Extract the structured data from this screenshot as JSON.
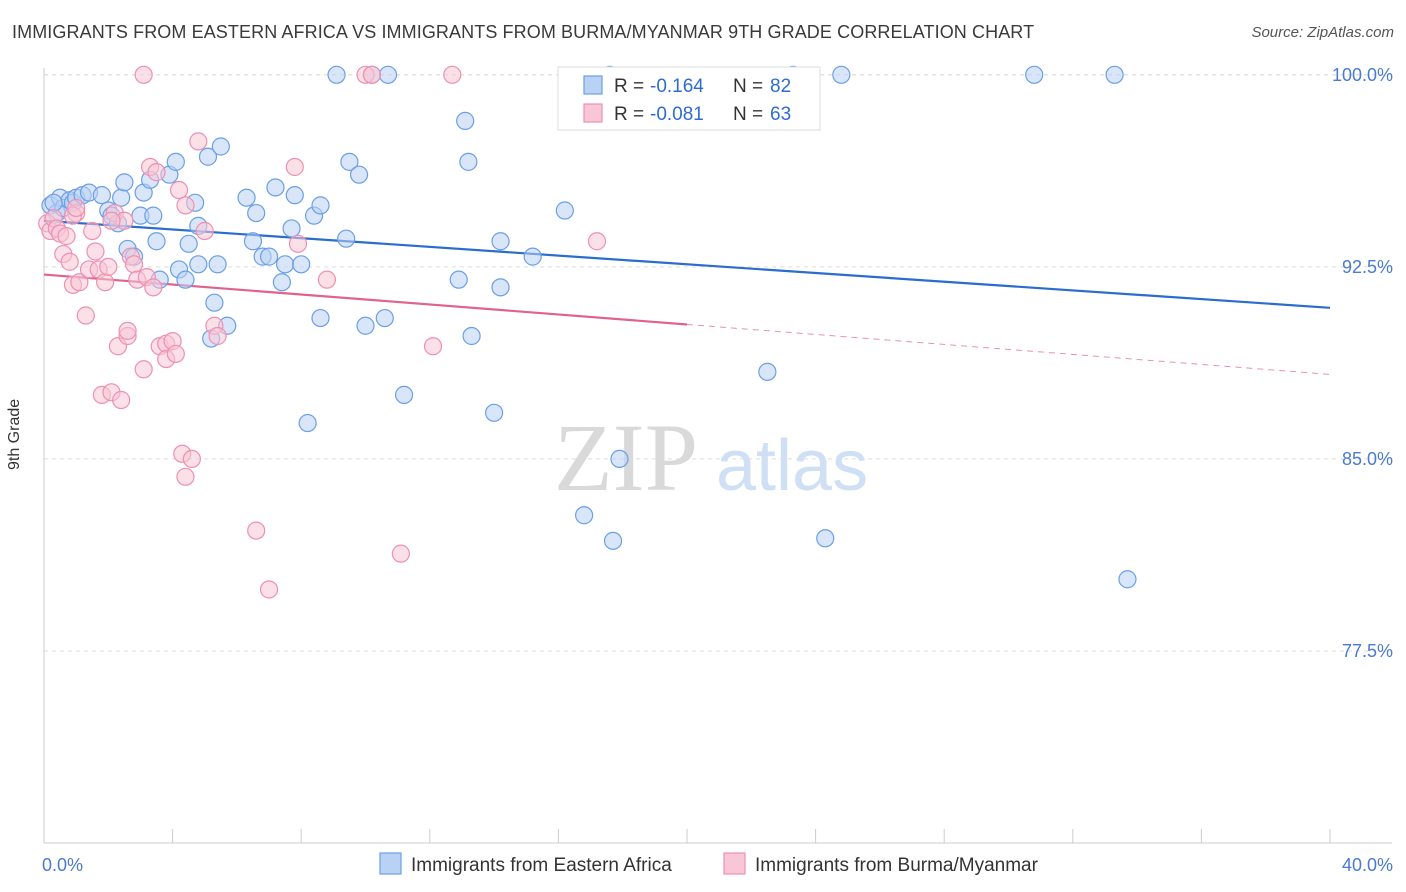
{
  "title": "IMMIGRANTS FROM EASTERN AFRICA VS IMMIGRANTS FROM BURMA/MYANMAR 9TH GRADE CORRELATION CHART",
  "source": "Source: ZipAtlas.com",
  "watermark": {
    "zip": "ZIP",
    "atlas": "atlas"
  },
  "colors": {
    "blue": "#6a9fe6",
    "blue_fill": "#b9d2f4",
    "blue_line": "#2a6dcc",
    "pink": "#ef8fb2",
    "pink_fill": "#f8c6d6",
    "pink_line": "#e0628f",
    "tick": "#4a7bd0"
  },
  "legend": {
    "r_label": "R =",
    "n_label": "N =",
    "items": [
      {
        "r": "-0.164",
        "n": "82",
        "color": "blue"
      },
      {
        "r": "-0.081",
        "n": "63",
        "color": "pink"
      }
    ]
  },
  "chart_data": {
    "type": "scatter",
    "ylabel": "9th Grade",
    "xlim": [
      0,
      40
    ],
    "ylim": [
      70.0,
      100.5
    ],
    "x_tick_labels": [
      {
        "x": 0,
        "label": "0.0%"
      },
      {
        "x": 40,
        "label": "40.0%"
      }
    ],
    "y_tick_labels": [
      {
        "y": 100,
        "label": "100.0%"
      },
      {
        "y": 92.5,
        "label": "92.5%"
      },
      {
        "y": 85,
        "label": "85.0%"
      },
      {
        "y": 77.5,
        "label": "77.5%"
      }
    ],
    "grid": true,
    "series": [
      {
        "name": "Immigrants from Eastern Africa",
        "color": "blue",
        "trend": {
          "x": [
            0,
            40
          ],
          "y": [
            94.3,
            90.9
          ],
          "solid_to": 40
        },
        "points": [
          [
            0.2,
            94.9
          ],
          [
            0.4,
            94.6
          ],
          [
            0.5,
            95.2
          ],
          [
            0.6,
            94.8
          ],
          [
            0.8,
            95.1
          ],
          [
            0.9,
            95.0
          ],
          [
            1.0,
            95.2
          ],
          [
            1.2,
            95.3
          ],
          [
            1.4,
            95.4
          ],
          [
            1.8,
            95.3
          ],
          [
            2.0,
            94.7
          ],
          [
            2.1,
            94.5
          ],
          [
            2.3,
            94.2
          ],
          [
            2.4,
            95.2
          ],
          [
            2.5,
            95.8
          ],
          [
            2.6,
            93.2
          ],
          [
            2.8,
            92.9
          ],
          [
            3.0,
            94.5
          ],
          [
            3.1,
            95.4
          ],
          [
            3.3,
            95.9
          ],
          [
            3.4,
            94.5
          ],
          [
            3.5,
            93.5
          ],
          [
            3.6,
            92.0
          ],
          [
            3.9,
            96.1
          ],
          [
            4.1,
            96.6
          ],
          [
            4.2,
            92.4
          ],
          [
            4.4,
            92.0
          ],
          [
            4.5,
            93.4
          ],
          [
            4.7,
            95.0
          ],
          [
            4.8,
            94.1
          ],
          [
            4.8,
            92.6
          ],
          [
            5.1,
            96.8
          ],
          [
            5.2,
            89.7
          ],
          [
            5.3,
            91.1
          ],
          [
            5.4,
            92.6
          ],
          [
            5.5,
            97.2
          ],
          [
            5.7,
            90.2
          ],
          [
            6.3,
            95.2
          ],
          [
            6.5,
            93.5
          ],
          [
            6.6,
            94.6
          ],
          [
            6.8,
            92.9
          ],
          [
            7.0,
            92.9
          ],
          [
            7.2,
            95.6
          ],
          [
            7.4,
            91.9
          ],
          [
            7.5,
            92.6
          ],
          [
            7.7,
            94.0
          ],
          [
            7.8,
            95.3
          ],
          [
            8.0,
            92.6
          ],
          [
            8.2,
            86.4
          ],
          [
            8.4,
            94.5
          ],
          [
            8.6,
            90.5
          ],
          [
            8.6,
            94.9
          ],
          [
            9.1,
            100.0
          ],
          [
            9.4,
            93.6
          ],
          [
            9.5,
            96.6
          ],
          [
            9.8,
            96.1
          ],
          [
            10.0,
            90.2
          ],
          [
            10.2,
            100.0
          ],
          [
            10.6,
            90.5
          ],
          [
            10.7,
            100.0
          ],
          [
            11.2,
            87.5
          ],
          [
            12.9,
            92.0
          ],
          [
            13.1,
            98.2
          ],
          [
            13.2,
            96.6
          ],
          [
            13.3,
            89.8
          ],
          [
            14.0,
            86.8
          ],
          [
            14.2,
            93.5
          ],
          [
            14.2,
            91.7
          ],
          [
            15.2,
            92.9
          ],
          [
            16.2,
            94.7
          ],
          [
            16.8,
            82.8
          ],
          [
            17.6,
            100.0
          ],
          [
            17.7,
            81.8
          ],
          [
            17.9,
            85.0
          ],
          [
            22.5,
            88.4
          ],
          [
            23.3,
            100.0
          ],
          [
            24.3,
            81.9
          ],
          [
            24.8,
            100.0
          ],
          [
            30.8,
            100.0
          ],
          [
            33.3,
            100.0
          ],
          [
            33.7,
            80.3
          ],
          [
            0.3,
            95.0
          ]
        ]
      },
      {
        "name": "Immigrants from Burma/Myanmar",
        "color": "pink",
        "trend": {
          "x": [
            0,
            40
          ],
          "y": [
            92.2,
            88.3
          ],
          "solid_to": 20
        },
        "points": [
          [
            0.1,
            94.2
          ],
          [
            0.2,
            93.9
          ],
          [
            0.3,
            94.4
          ],
          [
            0.4,
            94.0
          ],
          [
            0.5,
            93.8
          ],
          [
            0.6,
            93.0
          ],
          [
            0.7,
            93.7
          ],
          [
            0.8,
            92.7
          ],
          [
            0.9,
            91.8
          ],
          [
            1.0,
            94.6
          ],
          [
            1.1,
            91.9
          ],
          [
            1.3,
            90.6
          ],
          [
            1.4,
            92.4
          ],
          [
            1.5,
            93.9
          ],
          [
            1.6,
            93.1
          ],
          [
            1.7,
            92.4
          ],
          [
            1.8,
            87.5
          ],
          [
            1.9,
            91.9
          ],
          [
            2.0,
            92.5
          ],
          [
            2.1,
            87.6
          ],
          [
            2.2,
            94.6
          ],
          [
            2.3,
            89.4
          ],
          [
            2.4,
            87.3
          ],
          [
            2.5,
            94.3
          ],
          [
            2.6,
            89.8
          ],
          [
            2.6,
            90.0
          ],
          [
            2.7,
            92.9
          ],
          [
            2.8,
            92.6
          ],
          [
            2.9,
            92.0
          ],
          [
            3.1,
            100.0
          ],
          [
            3.1,
            88.5
          ],
          [
            3.2,
            92.1
          ],
          [
            3.3,
            96.4
          ],
          [
            3.4,
            91.7
          ],
          [
            3.5,
            96.2
          ],
          [
            3.6,
            89.4
          ],
          [
            3.8,
            89.5
          ],
          [
            3.8,
            88.9
          ],
          [
            4.0,
            89.6
          ],
          [
            4.1,
            89.1
          ],
          [
            4.2,
            95.5
          ],
          [
            4.3,
            85.2
          ],
          [
            4.4,
            94.9
          ],
          [
            4.4,
            84.3
          ],
          [
            4.6,
            85.0
          ],
          [
            4.8,
            97.4
          ],
          [
            5.0,
            93.9
          ],
          [
            5.3,
            90.2
          ],
          [
            5.4,
            89.8
          ],
          [
            6.6,
            82.2
          ],
          [
            7.0,
            79.9
          ],
          [
            7.8,
            96.4
          ],
          [
            7.9,
            93.4
          ],
          [
            8.8,
            92.0
          ],
          [
            10.0,
            100.0
          ],
          [
            11.1,
            81.3
          ],
          [
            12.1,
            89.4
          ],
          [
            12.7,
            100.0
          ],
          [
            17.2,
            93.5
          ],
          [
            10.2,
            100.0
          ],
          [
            2.1,
            94.3
          ],
          [
            0.9,
            94.5
          ],
          [
            1.0,
            94.8
          ]
        ]
      }
    ]
  },
  "bottom_legend": [
    {
      "label": "Immigrants from Eastern Africa",
      "color": "blue"
    },
    {
      "label": "Immigrants from Burma/Myanmar",
      "color": "pink"
    }
  ]
}
